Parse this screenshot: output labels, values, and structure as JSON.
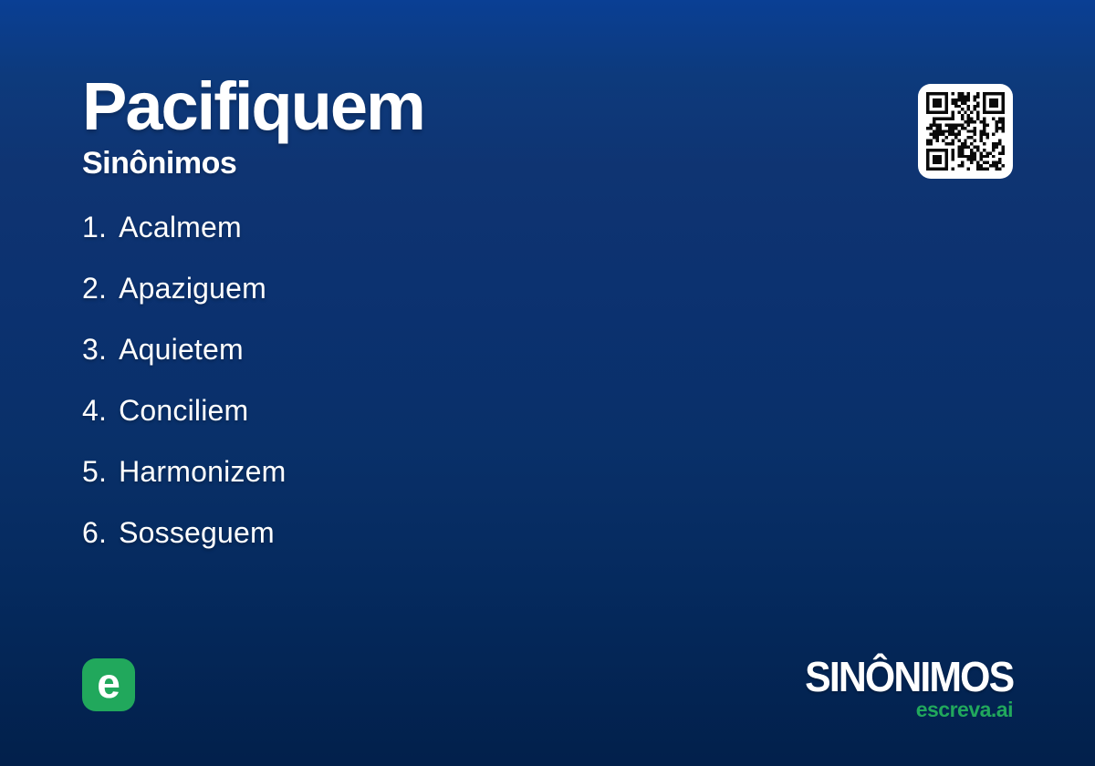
{
  "card": {
    "title": "Pacifiquem",
    "subtitle": "Sinônimos"
  },
  "synonyms": [
    {
      "number": "1.",
      "word": "Acalmem"
    },
    {
      "number": "2.",
      "word": "Apaziguem"
    },
    {
      "number": "3.",
      "word": "Aquietem"
    },
    {
      "number": "4.",
      "word": "Conciliem"
    },
    {
      "number": "5.",
      "word": "Harmonizem"
    },
    {
      "number": "6.",
      "word": "Sosseguem"
    }
  ],
  "footer": {
    "logo_letter": "e",
    "brand": "SINÔNIMOS",
    "domain": "escreva.ai"
  },
  "icons": {
    "qr": "qr-code",
    "logo": "escreva-logo"
  },
  "theme": {
    "background_top": "#0a3f94",
    "background_bottom": "#02204b",
    "text": "#ffffff",
    "accent_green": "#21a85c",
    "qr_background": "#ffffff",
    "qr_foreground": "#0a0a0a"
  }
}
